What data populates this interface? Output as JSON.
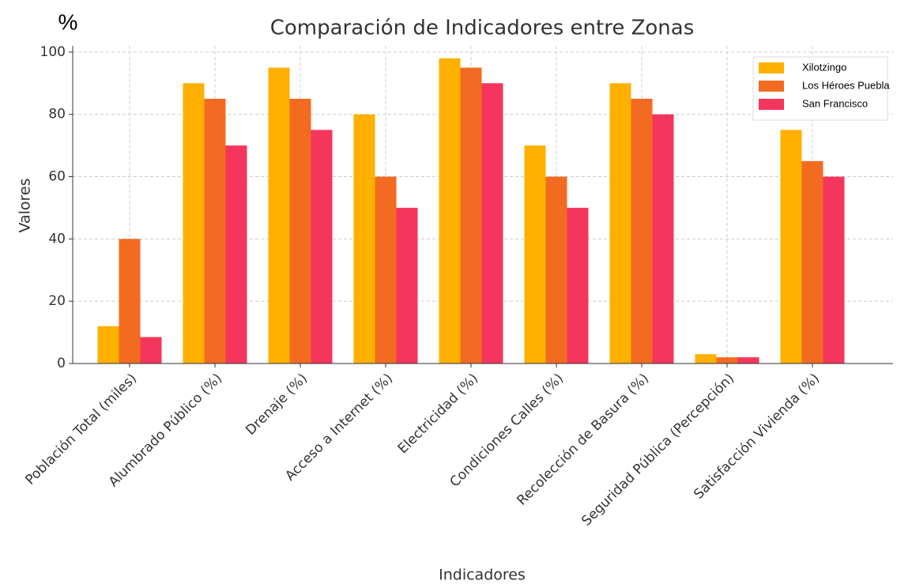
{
  "chart_data": {
    "type": "bar",
    "title": "Comparación de Indicadores entre Zonas",
    "unit_label": "%",
    "xlabel": "Indicadores",
    "ylabel": "Valores",
    "categories": [
      "Población Total (miles)",
      "Alumbrado Público (%)",
      "Drenaje (%)",
      "Acceso a Internet (%)",
      "Electricidad (%)",
      "Condiciones Calles (%)",
      "Recolección de Basura (%)",
      "Seguridad Pública (Percepción)",
      "Satisfacción Vivienda (%)"
    ],
    "series": [
      {
        "name": "Xilotzingo",
        "color": "#ffb000",
        "values": [
          12,
          90,
          95,
          80,
          98,
          70,
          90,
          3,
          75
        ]
      },
      {
        "name": "Los Héroes Puebla",
        "color": "#f26b21",
        "values": [
          40,
          85,
          85,
          60,
          95,
          60,
          85,
          2,
          65
        ]
      },
      {
        "name": "San Francisco",
        "color": "#f5365c",
        "values": [
          8.5,
          70,
          75,
          50,
          90,
          50,
          80,
          2,
          60
        ]
      }
    ],
    "ylim": [
      0,
      102
    ],
    "yticks": [
      0,
      20,
      40,
      60,
      80,
      100
    ],
    "grid": true,
    "legend": "upper right"
  }
}
